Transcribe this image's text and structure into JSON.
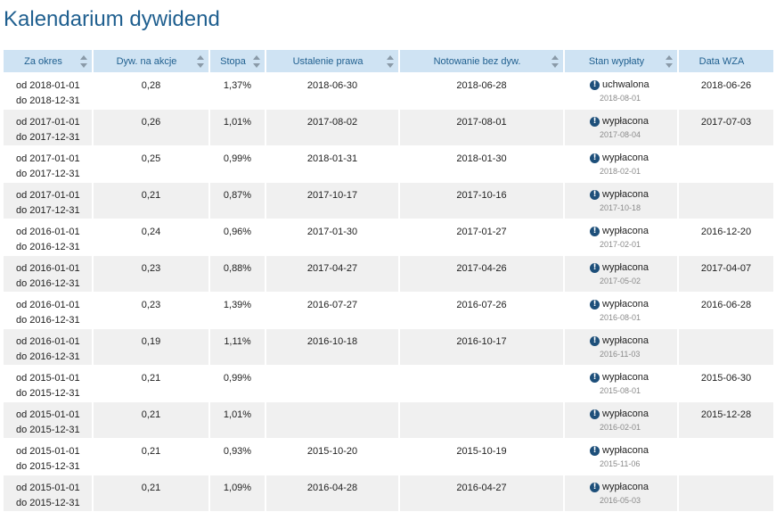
{
  "title": "Kalendarium dywidend",
  "columns": [
    "Za okres",
    "Dyw. na akcje",
    "Stopa",
    "Ustalenie prawa",
    "Notowanie bez dyw.",
    "Stan wypłaty",
    "Data WZA"
  ],
  "rows": [
    {
      "period_from": "od 2018-01-01",
      "period_to": "do 2018-12-31",
      "dividend": "0,28",
      "yield": "1,37%",
      "record_date": "2018-06-30",
      "ex_date": "2018-06-28",
      "status": "uchwalona",
      "status_date": "2018-08-01",
      "agm_date": "2018-06-26"
    },
    {
      "period_from": "od 2017-01-01",
      "period_to": "do 2017-12-31",
      "dividend": "0,26",
      "yield": "1,01%",
      "record_date": "2017-08-02",
      "ex_date": "2017-08-01",
      "status": "wypłacona",
      "status_date": "2017-08-04",
      "agm_date": "2017-07-03"
    },
    {
      "period_from": "od 2017-01-01",
      "period_to": "do 2017-12-31",
      "dividend": "0,25",
      "yield": "0,99%",
      "record_date": "2018-01-31",
      "ex_date": "2018-01-30",
      "status": "wypłacona",
      "status_date": "2018-02-01",
      "agm_date": ""
    },
    {
      "period_from": "od 2017-01-01",
      "period_to": "do 2017-12-31",
      "dividend": "0,21",
      "yield": "0,87%",
      "record_date": "2017-10-17",
      "ex_date": "2017-10-16",
      "status": "wypłacona",
      "status_date": "2017-10-18",
      "agm_date": ""
    },
    {
      "period_from": "od 2016-01-01",
      "period_to": "do 2016-12-31",
      "dividend": "0,24",
      "yield": "0,96%",
      "record_date": "2017-01-30",
      "ex_date": "2017-01-27",
      "status": "wypłacona",
      "status_date": "2017-02-01",
      "agm_date": "2016-12-20"
    },
    {
      "period_from": "od 2016-01-01",
      "period_to": "do 2016-12-31",
      "dividend": "0,23",
      "yield": "0,88%",
      "record_date": "2017-04-27",
      "ex_date": "2017-04-26",
      "status": "wypłacona",
      "status_date": "2017-05-02",
      "agm_date": "2017-04-07"
    },
    {
      "period_from": "od 2016-01-01",
      "period_to": "do 2016-12-31",
      "dividend": "0,23",
      "yield": "1,39%",
      "record_date": "2016-07-27",
      "ex_date": "2016-07-26",
      "status": "wypłacona",
      "status_date": "2016-08-01",
      "agm_date": "2016-06-28"
    },
    {
      "period_from": "od 2016-01-01",
      "period_to": "do 2016-12-31",
      "dividend": "0,19",
      "yield": "1,11%",
      "record_date": "2016-10-18",
      "ex_date": "2016-10-17",
      "status": "wypłacona",
      "status_date": "2016-11-03",
      "agm_date": ""
    },
    {
      "period_from": "od 2015-01-01",
      "period_to": "do 2015-12-31",
      "dividend": "0,21",
      "yield": "0,99%",
      "record_date": "",
      "ex_date": "",
      "status": "wypłacona",
      "status_date": "2015-08-01",
      "agm_date": "2015-06-30"
    },
    {
      "period_from": "od 2015-01-01",
      "period_to": "do 2015-12-31",
      "dividend": "0,21",
      "yield": "1,01%",
      "record_date": "",
      "ex_date": "",
      "status": "wypłacona",
      "status_date": "2016-02-01",
      "agm_date": "2015-12-28"
    },
    {
      "period_from": "od 2015-01-01",
      "period_to": "do 2015-12-31",
      "dividend": "0,21",
      "yield": "0,93%",
      "record_date": "2015-10-20",
      "ex_date": "2015-10-19",
      "status": "wypłacona",
      "status_date": "2015-11-06",
      "agm_date": ""
    },
    {
      "period_from": "od 2015-01-01",
      "period_to": "do 2015-12-31",
      "dividend": "0,21",
      "yield": "1,09%",
      "record_date": "2016-04-28",
      "ex_date": "2016-04-27",
      "status": "wypłacona",
      "status_date": "2016-05-03",
      "agm_date": ""
    }
  ],
  "icons": {
    "status": "info-icon",
    "sort": "sort-arrows-icon"
  },
  "colors": {
    "title": "#1f5f8f",
    "header_bg": "#cfe3f3",
    "header_text": "#1f5f8f",
    "row_alt": "#f0f0f0",
    "status_icon": "#1d4f7a"
  }
}
